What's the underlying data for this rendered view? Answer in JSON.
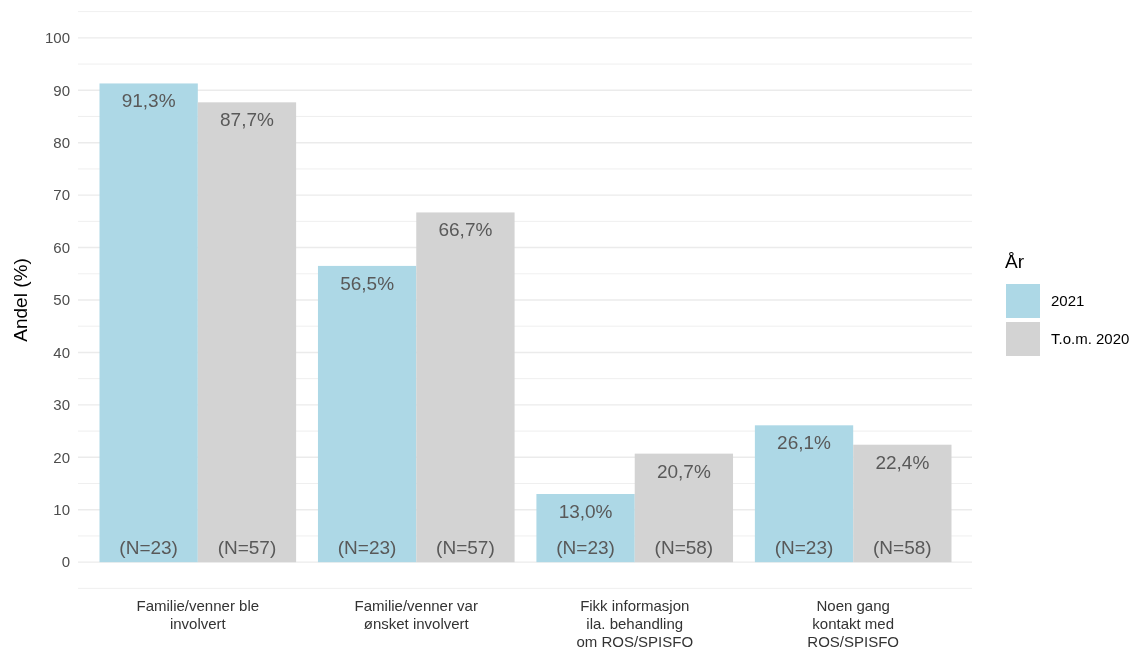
{
  "chart_data": {
    "type": "bar",
    "ylabel": "Andel (%)",
    "legend_title": "År",
    "categories": [
      "Familie/venner ble\ninvolvert",
      "Familie/venner var\nønsket involvert",
      "Fikk informasjon\nila. behandling\nom ROS/SPISFO",
      "Noen gang\nkontakt med\nROS/SPISFO"
    ],
    "series": [
      {
        "name": "2021",
        "color": "#add8e6",
        "values": [
          91.3,
          56.5,
          13.0,
          26.1
        ],
        "value_labels": [
          "91,3%",
          "56,5%",
          "13,0%",
          "26,1%"
        ]
      },
      {
        "name": "T.o.m. 2020",
        "color": "#d3d3d3",
        "values": [
          87.7,
          66.7,
          20.7,
          22.4
        ],
        "value_labels": [
          "87,7%",
          "66,7%",
          "20,7%",
          "22,4%"
        ]
      }
    ],
    "annotations": [
      "(N=23)",
      "(N=57)",
      "(N=23)",
      "(N=57)",
      "(N=23)",
      "(N=58)",
      "(N=23)",
      "(N=58)"
    ],
    "ylim": [
      -5.5,
      105.5
    ],
    "yticks": [
      {
        "value": -5,
        "label": null
      },
      0,
      {
        "value": 5,
        "label": null
      },
      10,
      {
        "value": 15,
        "label": null
      },
      20,
      {
        "value": 25,
        "label": null
      },
      30,
      {
        "value": 35,
        "label": null
      },
      40,
      {
        "value": 45,
        "label": null
      },
      50,
      {
        "value": 55,
        "label": null
      },
      60,
      {
        "value": 65,
        "label": null
      },
      70,
      {
        "value": 75,
        "label": null
      },
      80,
      {
        "value": 85,
        "label": null
      },
      90,
      {
        "value": 95,
        "label": null
      },
      100,
      {
        "value": 105,
        "label": null
      }
    ],
    "grid": true,
    "legend": "right"
  }
}
